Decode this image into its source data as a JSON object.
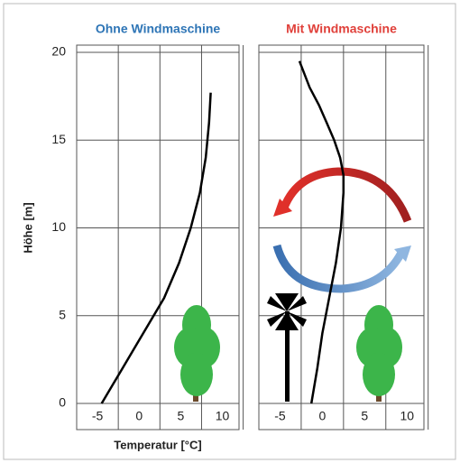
{
  "chart_data": [
    {
      "type": "line",
      "title": "Ohne Windmaschine",
      "title_color": "#2e75b6",
      "ylabel": "Höhe [m]",
      "xlabel": "Temperatur [°C]",
      "x": [
        -4.5,
        -2,
        0.5,
        3,
        4.8,
        6.2,
        7.3,
        8,
        8.4,
        8.6
      ],
      "values": [
        0,
        2,
        4,
        6,
        8,
        10,
        12,
        14,
        16,
        17.7
      ],
      "color": "#000000",
      "xlim": [
        -7.5,
        12
      ],
      "xticks": [
        -5,
        0,
        5,
        10
      ],
      "ylim": [
        0,
        20
      ],
      "yticks": [
        0,
        5,
        10,
        15,
        20
      ],
      "grid": true
    },
    {
      "type": "line",
      "title": "Mit Windmaschine",
      "title_color": "#e0403a",
      "x": [
        -1.3,
        -0.6,
        0,
        0.8,
        1.6,
        2.2,
        2.5,
        2.5,
        2.1,
        1.4,
        0.5,
        -0.4,
        -1.5,
        -2.7
      ],
      "values": [
        0,
        2,
        4,
        6,
        8,
        10,
        12,
        13,
        14,
        15,
        16,
        17,
        18,
        19.5
      ],
      "color": "#000000",
      "xlim": [
        -7.5,
        12
      ],
      "xticks": [
        -5,
        0,
        5,
        10
      ],
      "ylim": [
        0,
        20
      ],
      "yticks": [
        0,
        5,
        10,
        15,
        20
      ],
      "grid": true
    }
  ]
}
